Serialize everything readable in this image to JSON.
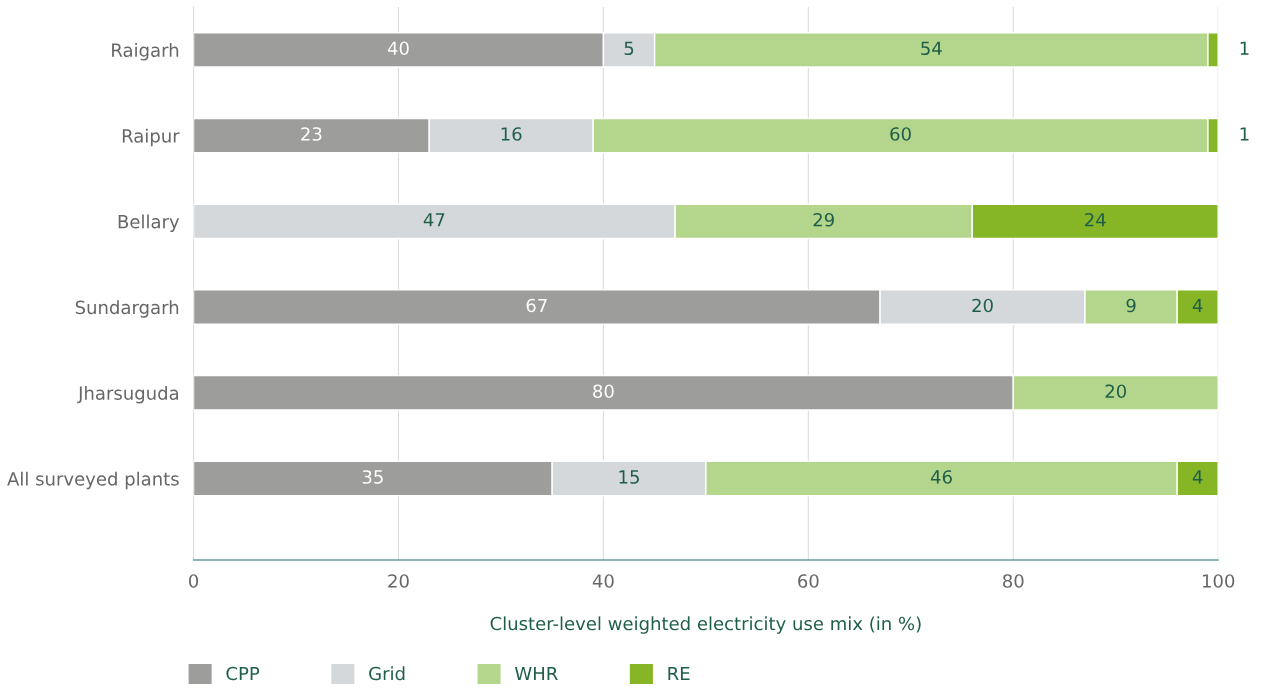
{
  "chart_data": {
    "type": "bar",
    "orientation": "horizontal",
    "stacked": true,
    "categories": [
      "Raigarh",
      "Raipur",
      "Bellary",
      "Sundargarh",
      "Jharsuguda",
      "All surveyed plants"
    ],
    "series": [
      {
        "name": "CPP",
        "color": "#9d9d9c",
        "values": [
          40,
          23,
          0,
          67,
          80,
          35
        ],
        "value_labels": [
          "40",
          "23",
          null,
          "67",
          "80",
          "35"
        ]
      },
      {
        "name": "Grid",
        "color": "#d5d8db",
        "values": [
          5,
          16,
          47,
          20,
          0,
          15
        ],
        "value_labels": [
          "5",
          "16",
          "47",
          "20",
          null,
          "15"
        ]
      },
      {
        "name": "WHR",
        "color": "#b3d68c",
        "values": [
          54,
          60,
          29,
          9,
          20,
          46
        ],
        "value_labels": [
          "54",
          "60",
          "29",
          "9",
          "20",
          "46"
        ]
      },
      {
        "name": "RE",
        "color": "#86b526",
        "values": [
          1,
          1,
          24,
          4,
          0,
          4
        ],
        "value_labels": [
          "1",
          "1",
          "24",
          "4",
          null,
          "4"
        ]
      }
    ],
    "xlabel": "Cluster-level weighted electricity use mix (in %)",
    "xlim": [
      0,
      100
    ],
    "xticks": [
      0,
      20,
      40,
      60,
      80,
      100
    ],
    "grid": "x",
    "legend": "bottom"
  }
}
